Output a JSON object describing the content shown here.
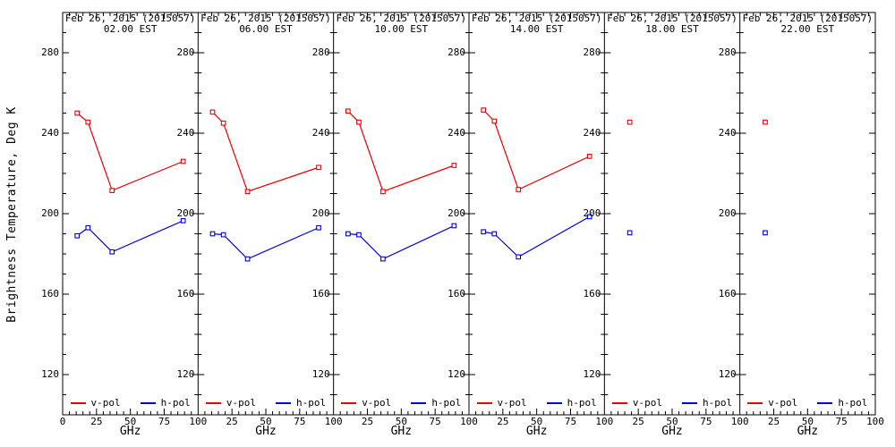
{
  "figure": {
    "background": "#ffffff",
    "axis_color": "#000000"
  },
  "chart_data": {
    "type": "line",
    "title": "Brightness temperature vs frequency, Feb 26, 2015 (2015057), six times of day",
    "xlabel": "GHz",
    "ylabel": "Brightness Temperature, Deg K",
    "xlim": [
      0,
      100
    ],
    "ylim": [
      100,
      300
    ],
    "x_major_ticks": [
      0,
      25,
      50,
      75,
      100
    ],
    "x_minor_step": 5,
    "y_major_ticks": [
      120,
      160,
      200,
      240,
      280
    ],
    "y_minor_step": 10,
    "grid": false,
    "legend_position": "bottom inside each panel",
    "series_defs": [
      {
        "name": "v-pol",
        "color": "#ee0000"
      },
      {
        "name": "h-pol",
        "color": "#0000dd"
      }
    ],
    "colors": {
      "v_pol": "#ee0000",
      "h_pol": "#0000dd",
      "axis": "#000000",
      "background": "#ffffff"
    },
    "panels": [
      {
        "date": "Feb 26, 2015 (2015057)",
        "time": "02.00 EST",
        "x_ghz": [
          10.7,
          18.7,
          36.5,
          89
        ],
        "v_pol": [
          250,
          245.5,
          211.5,
          226
        ],
        "h_pol": [
          189,
          193,
          181,
          196.5
        ]
      },
      {
        "date": "Feb 26, 2015 (2015057)",
        "time": "06.00 EST",
        "x_ghz": [
          10.7,
          18.7,
          36.5,
          89
        ],
        "v_pol": [
          250.5,
          245,
          211,
          223
        ],
        "h_pol": [
          190,
          189.5,
          177.5,
          193
        ]
      },
      {
        "date": "Feb 26, 2015 (2015057)",
        "time": "10.00 EST",
        "x_ghz": [
          10.7,
          18.7,
          36.5,
          89
        ],
        "v_pol": [
          251,
          245.5,
          211,
          224
        ],
        "h_pol": [
          190,
          189.5,
          177.5,
          194
        ]
      },
      {
        "date": "Feb 26, 2015 (2015057)",
        "time": "14.00 EST",
        "x_ghz": [
          10.7,
          18.7,
          36.5,
          89
        ],
        "v_pol": [
          251.5,
          246,
          212,
          228.5
        ],
        "h_pol": [
          191,
          190,
          178.5,
          198.5
        ]
      },
      {
        "date": "Feb 26, 2015 (2015057)",
        "time": "18.00 EST",
        "x_ghz": [
          18.7
        ],
        "v_pol": [
          245.5
        ],
        "h_pol": [
          190.5
        ]
      },
      {
        "date": "Feb 26, 2015 (2015057)",
        "time": "22.00 EST",
        "x_ghz": [
          18.7
        ],
        "v_pol": [
          245.5
        ],
        "h_pol": [
          190.5
        ]
      }
    ]
  }
}
